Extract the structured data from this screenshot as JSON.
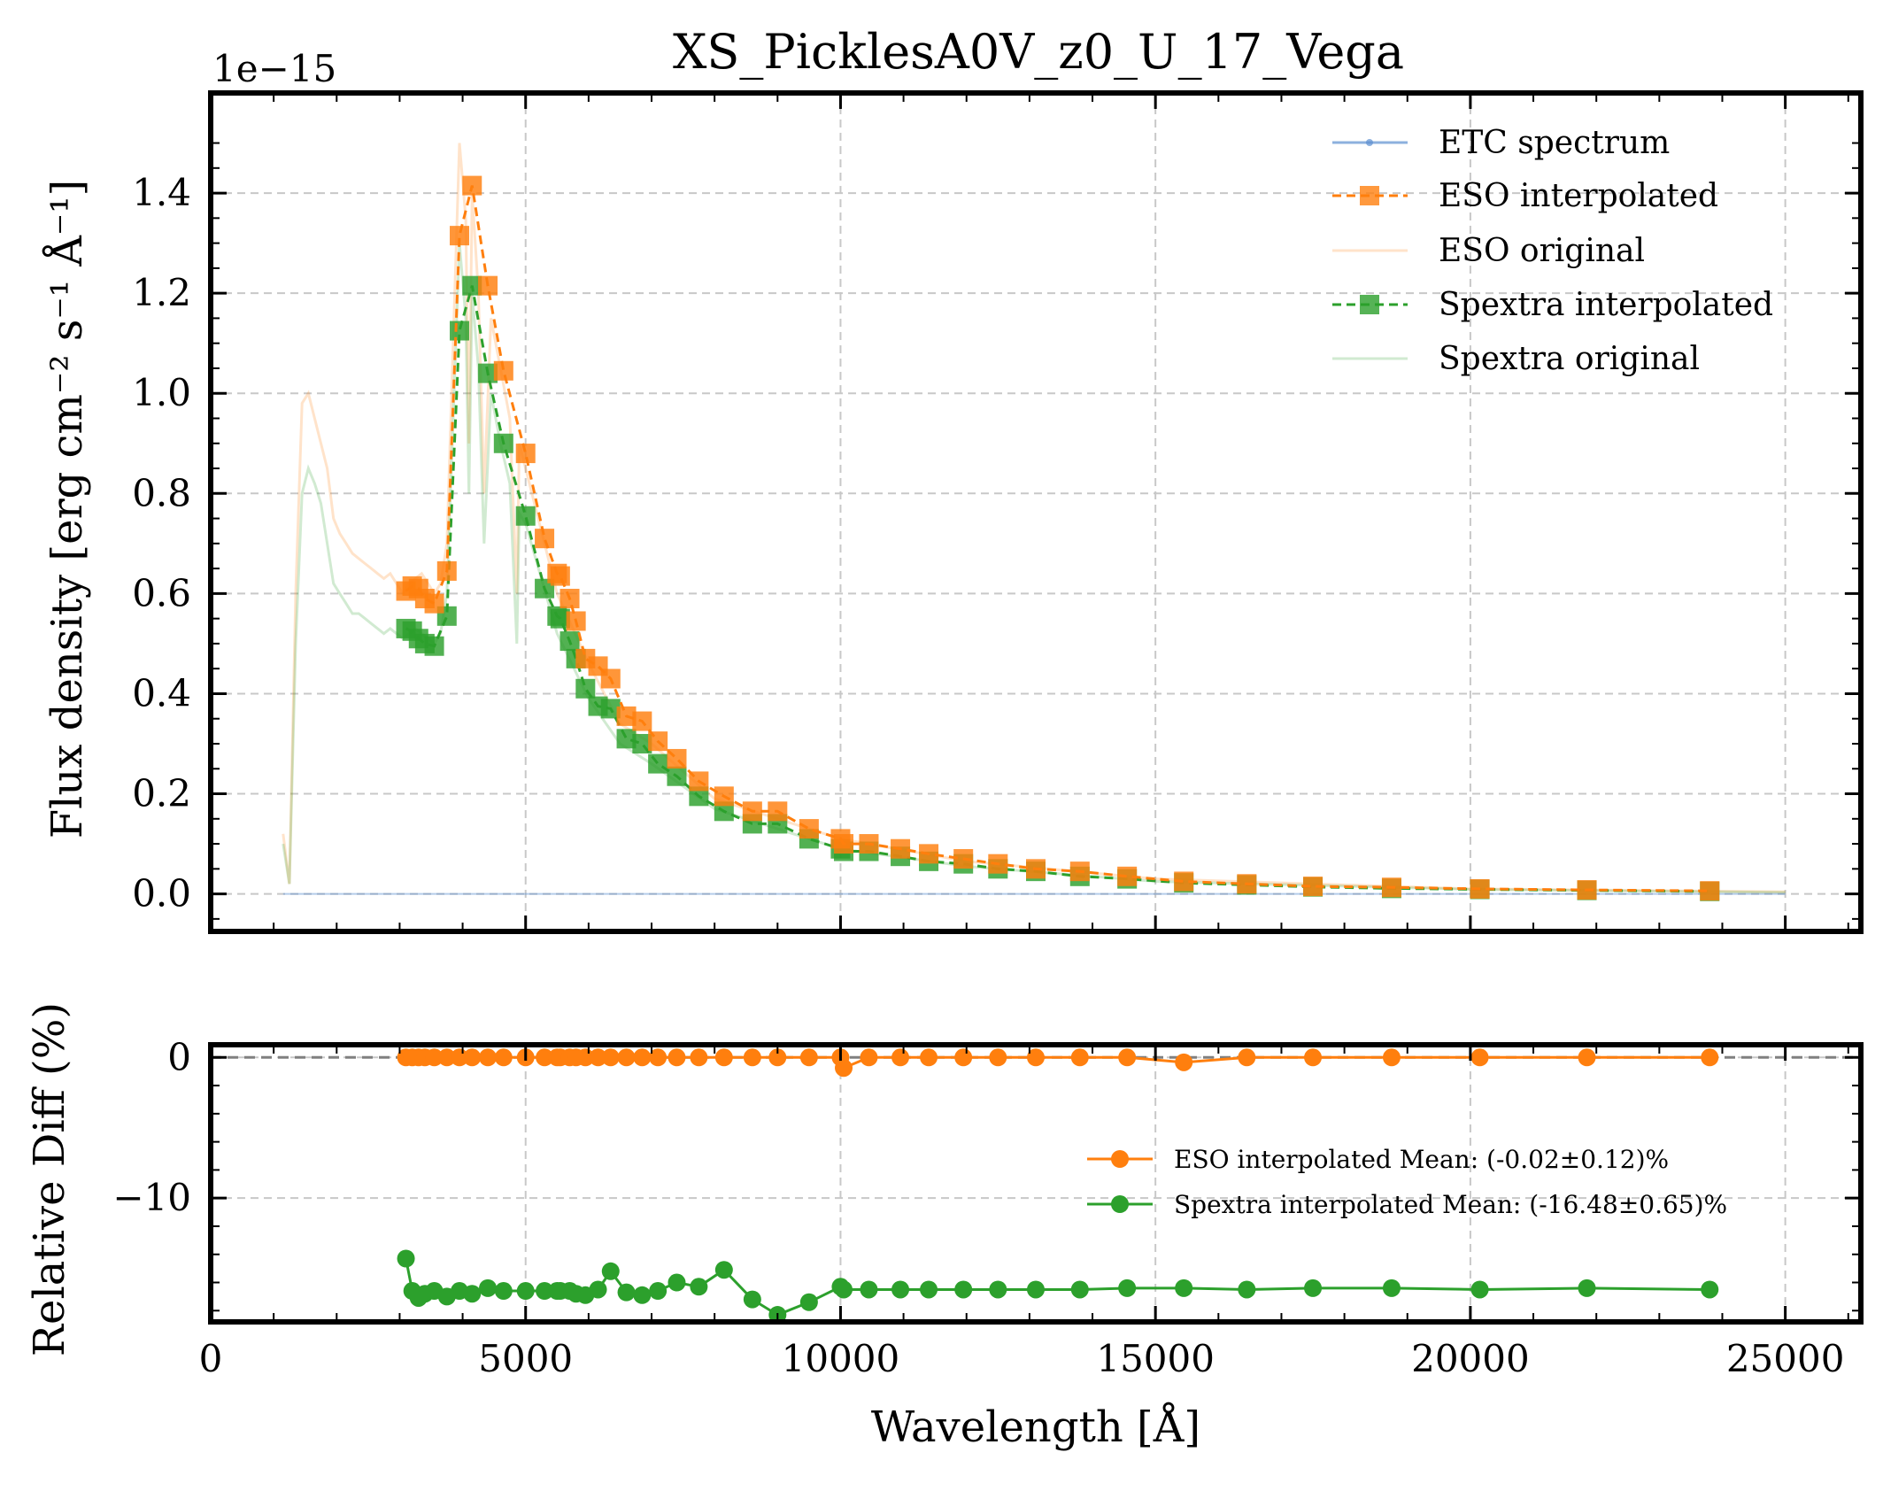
{
  "title": "XS_PicklesA0V_z0_U_17_Vega",
  "top_panel": {
    "ylabel": "Flux density [erg cm⁻² s⁻¹ Å⁻¹]",
    "offset_text": "1e−15",
    "yticks": [
      "0.0",
      "0.2",
      "0.4",
      "0.6",
      "0.8",
      "1.0",
      "1.2",
      "1.4"
    ],
    "legend": [
      {
        "key": "etc",
        "label": "ETC spectrum"
      },
      {
        "key": "eso_interp",
        "label": "ESO interpolated"
      },
      {
        "key": "eso_orig",
        "label": "ESO original"
      },
      {
        "key": "spextra_interp",
        "label": "Spextra interpolated"
      },
      {
        "key": "spextra_orig",
        "label": "Spextra original"
      }
    ]
  },
  "bottom_panel": {
    "ylabel": "Relative Diff (%)",
    "xlabel": "Wavelength [Å]",
    "yticks": [
      "−10",
      "0"
    ],
    "xticks": [
      "0",
      "5000",
      "10000",
      "15000",
      "20000",
      "25000"
    ],
    "legend": [
      {
        "key": "eso_diff",
        "label": "ESO interpolated Mean: (-0.02±0.12)%"
      },
      {
        "key": "spextra_diff",
        "label": "Spextra interpolated Mean: (-16.48±0.65)%"
      }
    ]
  },
  "colors": {
    "etc": "#5b8fd0",
    "eso": "#ff7f0e",
    "spextra": "#2ca02c",
    "grid": "#c8c8c8",
    "zero_line": "#808080"
  },
  "chart_data": [
    {
      "type": "line",
      "panel": "top",
      "title": "XS_PicklesA0V_z0_U_17_Vega",
      "xlabel": "",
      "ylabel": "Flux density [erg cm⁻² s⁻¹ Å⁻¹]",
      "y_scale_factor": "1e-15",
      "xlim": [
        0,
        26200
      ],
      "ylim": [
        -0.075,
        1.6
      ],
      "grid": true,
      "legend_position": "top-right",
      "series": [
        {
          "name": "ESO interpolated",
          "x": [
            3100,
            3200,
            3300,
            3400,
            3550,
            3750,
            3950,
            4150,
            4400,
            4650,
            5000,
            5300,
            5500,
            5550,
            5700,
            5800,
            5950,
            6150,
            6350,
            6600,
            6850,
            7100,
            7400,
            7750,
            8150,
            8600,
            9000,
            9500,
            10000,
            10050,
            10450,
            10950,
            11400,
            11950,
            12500,
            13100,
            13800,
            14550,
            15450,
            16450,
            17500,
            18750,
            20150,
            21850,
            23800
          ],
          "y": [
            0.605,
            0.615,
            0.61,
            0.59,
            0.58,
            0.645,
            1.315,
            1.415,
            1.215,
            1.045,
            0.88,
            0.71,
            0.64,
            0.635,
            0.59,
            0.545,
            0.47,
            0.455,
            0.43,
            0.355,
            0.345,
            0.305,
            0.27,
            0.225,
            0.195,
            0.165,
            0.165,
            0.13,
            0.11,
            0.1,
            0.1,
            0.09,
            0.08,
            0.07,
            0.06,
            0.05,
            0.045,
            0.035,
            0.025,
            0.02,
            0.015,
            0.013,
            0.01,
            0.008,
            0.006
          ]
        },
        {
          "name": "Spextra interpolated",
          "x": [
            3100,
            3200,
            3300,
            3400,
            3550,
            3750,
            3950,
            4150,
            4400,
            4650,
            5000,
            5300,
            5500,
            5550,
            5700,
            5800,
            5950,
            6150,
            6350,
            6600,
            6850,
            7100,
            7400,
            7750,
            8150,
            8600,
            9000,
            9500,
            10000,
            10050,
            10450,
            10950,
            11400,
            11950,
            12500,
            13100,
            13800,
            14550,
            15450,
            16450,
            17500,
            18750,
            20150,
            21850,
            23800
          ],
          "y": [
            0.53,
            0.525,
            0.51,
            0.5,
            0.495,
            0.555,
            1.125,
            1.215,
            1.04,
            0.9,
            0.755,
            0.61,
            0.555,
            0.55,
            0.505,
            0.47,
            0.41,
            0.375,
            0.37,
            0.31,
            0.3,
            0.26,
            0.235,
            0.195,
            0.165,
            0.14,
            0.14,
            0.11,
            0.09,
            0.085,
            0.085,
            0.075,
            0.065,
            0.06,
            0.05,
            0.045,
            0.035,
            0.03,
            0.022,
            0.018,
            0.014,
            0.011,
            0.009,
            0.007,
            0.005
          ]
        },
        {
          "name": "ESO original",
          "x": [
            1150,
            1250,
            1350,
            1450,
            1550,
            1650,
            1750,
            1850,
            1950,
            2050,
            2150,
            2250,
            2350,
            2450,
            2550,
            2650,
            2750,
            2850,
            2950,
            3050,
            3150,
            3250,
            3350,
            3450,
            3550,
            3650,
            3750,
            3850,
            3950,
            4050,
            4100,
            4150,
            4250,
            4340,
            4450,
            4600,
            4750,
            4861,
            4900,
            5000,
            5500,
            6000,
            6500,
            7000,
            8000,
            9000,
            10000,
            12000,
            15000,
            20000,
            25000
          ],
          "y": [
            0.12,
            0.02,
            0.6,
            0.98,
            1.0,
            0.95,
            0.9,
            0.85,
            0.75,
            0.72,
            0.7,
            0.68,
            0.67,
            0.66,
            0.65,
            0.64,
            0.63,
            0.64,
            0.62,
            0.6,
            0.62,
            0.63,
            0.64,
            0.62,
            0.6,
            0.62,
            0.7,
            1.1,
            1.5,
            1.35,
            0.9,
            1.4,
            1.2,
            0.8,
            1.15,
            1.05,
            0.95,
            0.6,
            0.9,
            0.85,
            0.6,
            0.46,
            0.34,
            0.3,
            0.19,
            0.15,
            0.11,
            0.065,
            0.03,
            0.01,
            0.004
          ]
        },
        {
          "name": "Spextra original",
          "x": [
            1150,
            1250,
            1350,
            1450,
            1550,
            1650,
            1750,
            1850,
            1950,
            2050,
            2150,
            2250,
            2350,
            2450,
            2550,
            2650,
            2750,
            2850,
            2950,
            3050,
            3150,
            3250,
            3350,
            3450,
            3550,
            3650,
            3750,
            3850,
            3950,
            4050,
            4100,
            4150,
            4250,
            4340,
            4450,
            4600,
            4750,
            4861,
            4900,
            5000,
            5500,
            6000,
            6500,
            7000,
            8000,
            9000,
            10000,
            12000,
            15000,
            20000,
            25000
          ],
          "y": [
            0.1,
            0.02,
            0.5,
            0.8,
            0.85,
            0.82,
            0.78,
            0.7,
            0.62,
            0.6,
            0.58,
            0.56,
            0.56,
            0.55,
            0.54,
            0.53,
            0.52,
            0.53,
            0.52,
            0.51,
            0.52,
            0.53,
            0.52,
            0.51,
            0.5,
            0.52,
            0.6,
            0.95,
            1.3,
            1.15,
            0.8,
            1.2,
            1.05,
            0.7,
            1.0,
            0.9,
            0.82,
            0.5,
            0.76,
            0.74,
            0.52,
            0.39,
            0.3,
            0.26,
            0.17,
            0.13,
            0.09,
            0.055,
            0.025,
            0.009,
            0.003
          ]
        },
        {
          "name": "ETC spectrum",
          "x": [
            1150,
            25000
          ],
          "y": [
            0.0,
            0.0
          ]
        }
      ]
    },
    {
      "type": "line",
      "panel": "bottom",
      "xlabel": "Wavelength [Å]",
      "ylabel": "Relative Diff (%)",
      "xlim": [
        0,
        26200
      ],
      "ylim": [
        -18.8,
        0.9
      ],
      "grid": true,
      "legend_position": "center-right",
      "reference_line_y": 0,
      "series": [
        {
          "name": "ESO interpolated Mean: (-0.02±0.12)%",
          "x": [
            3100,
            3200,
            3300,
            3400,
            3550,
            3750,
            3950,
            4150,
            4400,
            4650,
            5000,
            5300,
            5500,
            5550,
            5700,
            5800,
            5950,
            6150,
            6350,
            6600,
            6850,
            7100,
            7400,
            7750,
            8150,
            8600,
            9000,
            9500,
            10000,
            10050,
            10450,
            10950,
            11400,
            11950,
            12500,
            13100,
            13800,
            14550,
            15450,
            16450,
            17500,
            18750,
            20150,
            21850,
            23800
          ],
          "y": [
            0,
            0,
            0,
            0,
            0,
            0,
            0,
            0,
            0,
            0,
            0,
            0,
            0,
            0,
            0,
            0,
            0,
            0,
            0,
            0,
            0,
            0,
            0,
            0,
            0,
            0,
            0,
            0,
            0,
            -0.75,
            0,
            0,
            0,
            0,
            0,
            0,
            0,
            0,
            -0.35,
            0,
            0,
            0,
            0,
            0,
            0
          ]
        },
        {
          "name": "Spextra interpolated Mean: (-16.48±0.65)%",
          "x": [
            3100,
            3200,
            3300,
            3400,
            3550,
            3750,
            3950,
            4150,
            4400,
            4650,
            5000,
            5300,
            5500,
            5550,
            5700,
            5800,
            5950,
            6150,
            6350,
            6600,
            6850,
            7100,
            7400,
            7750,
            8150,
            8600,
            9000,
            9500,
            10000,
            10050,
            10450,
            10950,
            11400,
            11950,
            12500,
            13100,
            13800,
            14550,
            15450,
            16450,
            17500,
            18750,
            20150,
            21850,
            23800
          ],
          "y": [
            -14.3,
            -16.6,
            -17.1,
            -16.8,
            -16.6,
            -17.0,
            -16.6,
            -16.8,
            -16.4,
            -16.6,
            -16.6,
            -16.6,
            -16.6,
            -16.6,
            -16.6,
            -16.8,
            -16.9,
            -16.5,
            -15.2,
            -16.7,
            -16.9,
            -16.6,
            -16.0,
            -16.3,
            -15.1,
            -17.2,
            -18.3,
            -17.4,
            -16.3,
            -16.5,
            -16.5,
            -16.5,
            -16.5,
            -16.5,
            -16.5,
            -16.5,
            -16.5,
            -16.4,
            -16.4,
            -16.5,
            -16.4,
            -16.4,
            -16.5,
            -16.4,
            -16.5
          ]
        }
      ]
    }
  ]
}
